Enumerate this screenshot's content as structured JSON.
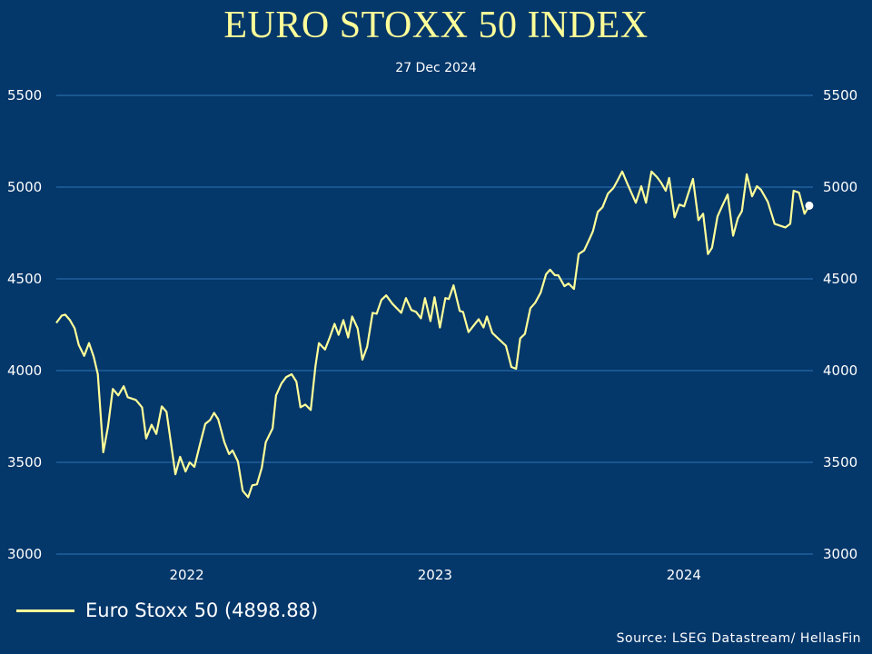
{
  "chart_data": {
    "type": "line",
    "title": "EURO STOXX 50 INDEX",
    "subtitle": "27 Dec 2024",
    "xlabel": "",
    "ylabel": "",
    "ylim": [
      3000,
      5500
    ],
    "yticks": [
      3000,
      3500,
      4000,
      4500,
      5000,
      5500
    ],
    "ytick_labels": [
      "3000",
      "3500",
      "4000",
      "4500",
      "5000",
      "5500"
    ],
    "xtick_labels": [
      "2022",
      "2023",
      "2024"
    ],
    "grid": "horizontal",
    "axes": "left and right",
    "legend_position": "bottom-left",
    "line_color": "#ffff99",
    "background_color": "#04376a",
    "grid_color": "#2e75b6",
    "series": [
      {
        "name": "Euro Stoxx 50 (4898.88)",
        "last_value": 4898.88,
        "points": [
          [
            "2021-12-16",
            4260
          ],
          [
            "2021-12-24",
            4300
          ],
          [
            "2021-12-29",
            4305
          ],
          [
            "2022-01-05",
            4275
          ],
          [
            "2022-01-12",
            4230
          ],
          [
            "2022-01-18",
            4140
          ],
          [
            "2022-01-26",
            4080
          ],
          [
            "2022-02-02",
            4150
          ],
          [
            "2022-02-09",
            4075
          ],
          [
            "2022-02-15",
            3980
          ],
          [
            "2022-02-23",
            3555
          ],
          [
            "2022-03-02",
            3695
          ],
          [
            "2022-03-09",
            3900
          ],
          [
            "2022-03-17",
            3865
          ],
          [
            "2022-03-25",
            3915
          ],
          [
            "2022-03-31",
            3855
          ],
          [
            "2022-04-12",
            3840
          ],
          [
            "2022-04-21",
            3800
          ],
          [
            "2022-04-27",
            3630
          ],
          [
            "2022-05-05",
            3705
          ],
          [
            "2022-05-12",
            3655
          ],
          [
            "2022-05-20",
            3805
          ],
          [
            "2022-05-27",
            3775
          ],
          [
            "2022-06-09",
            3435
          ],
          [
            "2022-06-16",
            3530
          ],
          [
            "2022-06-24",
            3450
          ],
          [
            "2022-06-30",
            3500
          ],
          [
            "2022-07-07",
            3475
          ],
          [
            "2022-07-15",
            3595
          ],
          [
            "2022-07-23",
            3710
          ],
          [
            "2022-07-30",
            3730
          ],
          [
            "2022-08-05",
            3770
          ],
          [
            "2022-08-11",
            3735
          ],
          [
            "2022-08-20",
            3610
          ],
          [
            "2022-08-27",
            3545
          ],
          [
            "2022-09-01",
            3565
          ],
          [
            "2022-09-09",
            3505
          ],
          [
            "2022-09-16",
            3345
          ],
          [
            "2022-09-24",
            3310
          ],
          [
            "2022-09-30",
            3375
          ],
          [
            "2022-10-07",
            3380
          ],
          [
            "2022-10-14",
            3470
          ],
          [
            "2022-10-20",
            3610
          ],
          [
            "2022-10-30",
            3685
          ],
          [
            "2022-11-04",
            3865
          ],
          [
            "2022-11-12",
            3930
          ],
          [
            "2022-11-19",
            3965
          ],
          [
            "2022-11-27",
            3980
          ],
          [
            "2022-12-04",
            3940
          ],
          [
            "2022-12-10",
            3800
          ],
          [
            "2022-12-17",
            3815
          ],
          [
            "2022-12-25",
            3785
          ],
          [
            "2023-01-01",
            4025
          ],
          [
            "2023-01-06",
            4150
          ],
          [
            "2023-01-15",
            4115
          ],
          [
            "2023-01-22",
            4180
          ],
          [
            "2023-01-29",
            4255
          ],
          [
            "2023-02-04",
            4195
          ],
          [
            "2023-02-11",
            4275
          ],
          [
            "2023-02-18",
            4180
          ],
          [
            "2023-02-24",
            4295
          ],
          [
            "2023-03-04",
            4230
          ],
          [
            "2023-03-11",
            4060
          ],
          [
            "2023-03-18",
            4130
          ],
          [
            "2023-03-26",
            4315
          ],
          [
            "2023-04-01",
            4310
          ],
          [
            "2023-04-08",
            4385
          ],
          [
            "2023-04-15",
            4410
          ],
          [
            "2023-04-24",
            4365
          ],
          [
            "2023-05-07",
            4315
          ],
          [
            "2023-05-14",
            4395
          ],
          [
            "2023-05-22",
            4330
          ],
          [
            "2023-05-29",
            4320
          ],
          [
            "2023-06-05",
            4285
          ],
          [
            "2023-06-11",
            4395
          ],
          [
            "2023-06-19",
            4270
          ],
          [
            "2023-06-25",
            4400
          ],
          [
            "2023-07-03",
            4235
          ],
          [
            "2023-07-11",
            4395
          ],
          [
            "2023-07-16",
            4390
          ],
          [
            "2023-07-23",
            4465
          ],
          [
            "2023-08-01",
            4325
          ],
          [
            "2023-08-06",
            4320
          ],
          [
            "2023-08-14",
            4210
          ],
          [
            "2023-08-29",
            4280
          ],
          [
            "2023-09-05",
            4235
          ],
          [
            "2023-09-10",
            4295
          ],
          [
            "2023-09-18",
            4205
          ],
          [
            "2023-10-08",
            4135
          ],
          [
            "2023-10-16",
            4020
          ],
          [
            "2023-10-23",
            4010
          ],
          [
            "2023-10-29",
            4175
          ],
          [
            "2023-11-05",
            4200
          ],
          [
            "2023-11-13",
            4340
          ],
          [
            "2023-11-20",
            4370
          ],
          [
            "2023-11-28",
            4425
          ],
          [
            "2023-12-06",
            4525
          ],
          [
            "2023-12-12",
            4550
          ],
          [
            "2023-12-19",
            4520
          ],
          [
            "2023-12-24",
            4520
          ],
          [
            "2024-01-02",
            4460
          ],
          [
            "2024-01-08",
            4475
          ],
          [
            "2024-01-16",
            4445
          ],
          [
            "2024-01-23",
            4635
          ],
          [
            "2024-01-31",
            4655
          ],
          [
            "2024-02-07",
            4710
          ],
          [
            "2024-02-13",
            4760
          ],
          [
            "2024-02-20",
            4865
          ],
          [
            "2024-02-27",
            4890
          ],
          [
            "2024-03-06",
            4965
          ],
          [
            "2024-03-14",
            4995
          ],
          [
            "2024-03-20",
            5035
          ],
          [
            "2024-03-27",
            5085
          ],
          [
            "2024-04-04",
            5015
          ],
          [
            "2024-04-16",
            4915
          ],
          [
            "2024-04-24",
            5005
          ],
          [
            "2024-05-01",
            4915
          ],
          [
            "2024-05-09",
            5085
          ],
          [
            "2024-05-17",
            5055
          ],
          [
            "2024-05-23",
            5025
          ],
          [
            "2024-05-30",
            4980
          ],
          [
            "2024-06-04",
            5050
          ],
          [
            "2024-06-12",
            4835
          ],
          [
            "2024-06-19",
            4905
          ],
          [
            "2024-06-26",
            4895
          ],
          [
            "2024-07-09",
            5045
          ],
          [
            "2024-07-17",
            4820
          ],
          [
            "2024-07-24",
            4855
          ],
          [
            "2024-07-31",
            4635
          ],
          [
            "2024-08-06",
            4670
          ],
          [
            "2024-08-14",
            4840
          ],
          [
            "2024-08-22",
            4905
          ],
          [
            "2024-08-29",
            4960
          ],
          [
            "2024-09-06",
            4735
          ],
          [
            "2024-09-13",
            4830
          ],
          [
            "2024-09-19",
            4870
          ],
          [
            "2024-09-26",
            5070
          ],
          [
            "2024-10-04",
            4950
          ],
          [
            "2024-10-11",
            5005
          ],
          [
            "2024-10-17",
            4985
          ],
          [
            "2024-10-27",
            4920
          ],
          [
            "2024-11-06",
            4800
          ],
          [
            "2024-11-22",
            4780
          ],
          [
            "2024-11-29",
            4800
          ],
          [
            "2024-12-04",
            4980
          ],
          [
            "2024-12-12",
            4970
          ],
          [
            "2024-12-20",
            4855
          ],
          [
            "2024-12-27",
            4898.88
          ]
        ]
      }
    ]
  },
  "source": "Source: LSEG Datastream/ HellasFin"
}
